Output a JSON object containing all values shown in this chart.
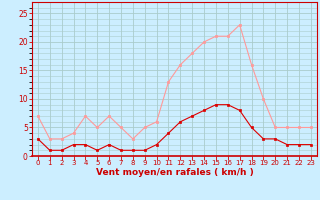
{
  "hours": [
    0,
    1,
    2,
    3,
    4,
    5,
    6,
    7,
    8,
    9,
    10,
    11,
    12,
    13,
    14,
    15,
    16,
    17,
    18,
    19,
    20,
    21,
    22,
    23
  ],
  "rafales": [
    7,
    3,
    3,
    4,
    7,
    5,
    7,
    5,
    3,
    5,
    6,
    13,
    16,
    18,
    20,
    21,
    21,
    23,
    16,
    10,
    5,
    5,
    5,
    5
  ],
  "moyen": [
    3,
    1,
    1,
    2,
    2,
    1,
    2,
    1,
    1,
    1,
    2,
    4,
    6,
    7,
    8,
    9,
    9,
    8,
    5,
    3,
    3,
    2,
    2,
    2
  ],
  "bg_color": "#cceeff",
  "grid_color": "#aacccc",
  "line_color_rafales": "#ff9999",
  "line_color_moyen": "#dd0000",
  "marker_color_rafales": "#ff9999",
  "marker_color_moyen": "#dd0000",
  "xlabel": "Vent moyen/en rafales ( km/h )",
  "ylim": [
    0,
    27
  ],
  "yticks": [
    0,
    5,
    10,
    15,
    20,
    25
  ],
  "tick_color": "#cc0000",
  "axis_color": "#cc0000"
}
